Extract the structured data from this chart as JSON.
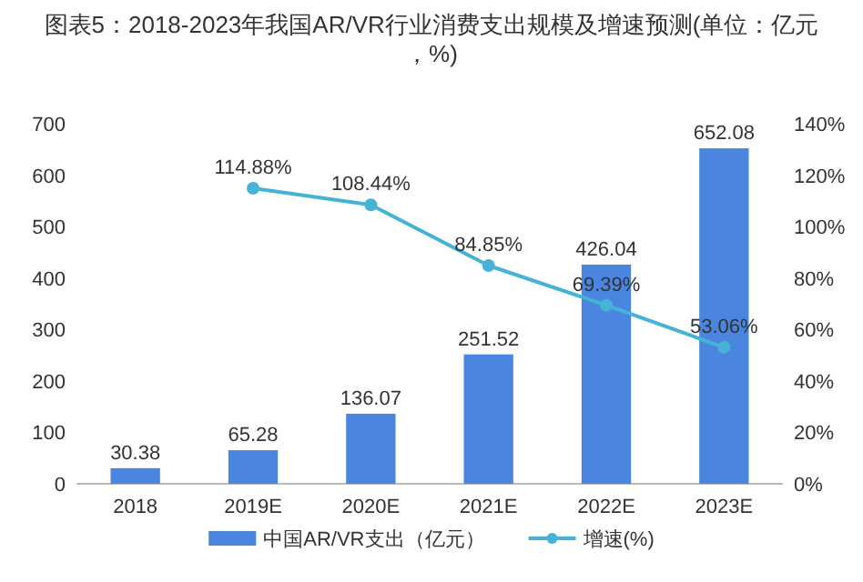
{
  "chart_data": {
    "type": "bar",
    "title": "图表5：2018-2023年我国AR/VR行业消费支出规模及增速预测(单位：亿元，%)",
    "categories": [
      "2018",
      "2019E",
      "2020E",
      "2021E",
      "2022E",
      "2023E"
    ],
    "series": [
      {
        "name": "中国AR/VR支出（亿元）",
        "color": "#4a86e0",
        "values": [
          30.38,
          65.28,
          136.07,
          251.52,
          426.04,
          652.08
        ]
      },
      {
        "name": "增速(%)",
        "type": "line",
        "axis": "y2",
        "color": "#45b3d6",
        "marker": "circle",
        "values": [
          null,
          114.88,
          108.44,
          84.85,
          69.39,
          53.06
        ],
        "value_labels": [
          null,
          "114.88%",
          "108.44%",
          "84.85%",
          "69.39%",
          "53.06%"
        ]
      }
    ],
    "data_labels": true,
    "ylim": [
      0,
      700
    ],
    "yticks": [
      0,
      100,
      200,
      300,
      400,
      500,
      600,
      700
    ],
    "y2lim": [
      0,
      140
    ],
    "y2ticks": [
      {
        "value": 0,
        "label": "0%"
      },
      {
        "value": 20,
        "label": "20%"
      },
      {
        "value": 40,
        "label": "40%"
      },
      {
        "value": 60,
        "label": "60%"
      },
      {
        "value": 80,
        "label": "80%"
      },
      {
        "value": 100,
        "label": "100%"
      },
      {
        "value": 120,
        "label": "120%"
      },
      {
        "value": 140,
        "label": "140%"
      }
    ],
    "legend": "bottom",
    "grid": false
  }
}
